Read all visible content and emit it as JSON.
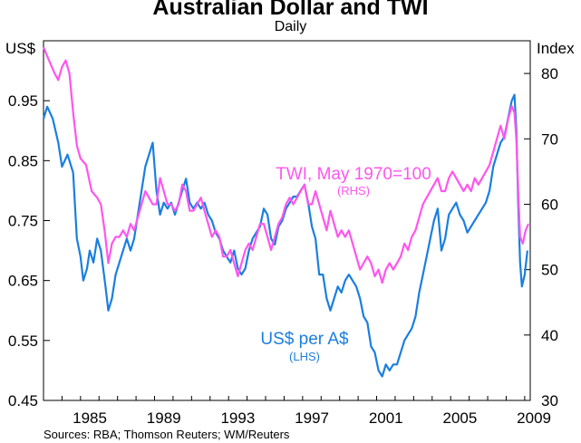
{
  "chart_data": {
    "type": "line",
    "title": "Australian Dollar and TWI",
    "subtitle": "Daily",
    "left_axis": {
      "label": "US$",
      "ylim": [
        0.45,
        1.05
      ],
      "ticks": [
        "0.45",
        "0.55",
        "0.65",
        "0.75",
        "0.85",
        "0.95"
      ],
      "tick_values": [
        0.45,
        0.55,
        0.65,
        0.75,
        0.85,
        0.95
      ]
    },
    "right_axis": {
      "label": "Index",
      "ylim": [
        30,
        85
      ],
      "ticks": [
        "30",
        "40",
        "50",
        "60",
        "70",
        "80"
      ],
      "tick_values": [
        30,
        40,
        50,
        60,
        70,
        80
      ]
    },
    "x_axis": {
      "range": [
        1983,
        2009.3
      ],
      "ticks": [
        "1985",
        "1989",
        "1993",
        "1997",
        "2001",
        "2005",
        "2009"
      ],
      "tick_values": [
        1985,
        1989,
        1993,
        1997,
        2001,
        2005,
        2009
      ]
    },
    "source": "Sources: RBA; Thomson Reuters; WM/Reuters",
    "series": [
      {
        "name": "US$ per A$",
        "sub": "(LHS)",
        "axis": "left",
        "color": "#1a7fe0",
        "points": [
          [
            1983.0,
            0.92
          ],
          [
            1983.2,
            0.94
          ],
          [
            1983.5,
            0.92
          ],
          [
            1983.8,
            0.88
          ],
          [
            1984.0,
            0.84
          ],
          [
            1984.3,
            0.86
          ],
          [
            1984.6,
            0.83
          ],
          [
            1984.8,
            0.72
          ],
          [
            1985.0,
            0.69
          ],
          [
            1985.15,
            0.65
          ],
          [
            1985.35,
            0.67
          ],
          [
            1985.5,
            0.7
          ],
          [
            1985.7,
            0.68
          ],
          [
            1985.9,
            0.72
          ],
          [
            1986.1,
            0.7
          ],
          [
            1986.35,
            0.64
          ],
          [
            1986.5,
            0.6
          ],
          [
            1986.7,
            0.62
          ],
          [
            1986.9,
            0.66
          ],
          [
            1987.1,
            0.68
          ],
          [
            1987.3,
            0.7
          ],
          [
            1987.5,
            0.72
          ],
          [
            1987.7,
            0.7
          ],
          [
            1987.9,
            0.72
          ],
          [
            1988.1,
            0.76
          ],
          [
            1988.3,
            0.8
          ],
          [
            1988.5,
            0.84
          ],
          [
            1988.7,
            0.86
          ],
          [
            1988.9,
            0.88
          ],
          [
            1989.1,
            0.8
          ],
          [
            1989.3,
            0.76
          ],
          [
            1989.5,
            0.78
          ],
          [
            1989.7,
            0.77
          ],
          [
            1989.9,
            0.78
          ],
          [
            1990.1,
            0.76
          ],
          [
            1990.3,
            0.78
          ],
          [
            1990.5,
            0.8
          ],
          [
            1990.7,
            0.82
          ],
          [
            1990.9,
            0.78
          ],
          [
            1991.1,
            0.77
          ],
          [
            1991.3,
            0.78
          ],
          [
            1991.5,
            0.77
          ],
          [
            1991.7,
            0.78
          ],
          [
            1991.9,
            0.76
          ],
          [
            1992.1,
            0.75
          ],
          [
            1992.3,
            0.73
          ],
          [
            1992.5,
            0.72
          ],
          [
            1992.7,
            0.7
          ],
          [
            1992.9,
            0.69
          ],
          [
            1993.1,
            0.68
          ],
          [
            1993.3,
            0.7
          ],
          [
            1993.5,
            0.67
          ],
          [
            1993.7,
            0.66
          ],
          [
            1993.9,
            0.67
          ],
          [
            1994.1,
            0.7
          ],
          [
            1994.3,
            0.72
          ],
          [
            1994.5,
            0.73
          ],
          [
            1994.7,
            0.74
          ],
          [
            1994.9,
            0.77
          ],
          [
            1995.1,
            0.76
          ],
          [
            1995.3,
            0.72
          ],
          [
            1995.5,
            0.71
          ],
          [
            1995.7,
            0.74
          ],
          [
            1995.9,
            0.75
          ],
          [
            1996.1,
            0.77
          ],
          [
            1996.3,
            0.78
          ],
          [
            1996.5,
            0.79
          ],
          [
            1996.7,
            0.79
          ],
          [
            1996.9,
            0.8
          ],
          [
            1997.1,
            0.81
          ],
          [
            1997.3,
            0.78
          ],
          [
            1997.5,
            0.74
          ],
          [
            1997.7,
            0.72
          ],
          [
            1997.9,
            0.66
          ],
          [
            1998.1,
            0.66
          ],
          [
            1998.3,
            0.62
          ],
          [
            1998.5,
            0.6
          ],
          [
            1998.7,
            0.62
          ],
          [
            1998.9,
            0.64
          ],
          [
            1999.1,
            0.63
          ],
          [
            1999.3,
            0.65
          ],
          [
            1999.5,
            0.66
          ],
          [
            1999.7,
            0.65
          ],
          [
            1999.9,
            0.64
          ],
          [
            2000.1,
            0.62
          ],
          [
            2000.3,
            0.59
          ],
          [
            2000.5,
            0.58
          ],
          [
            2000.7,
            0.54
          ],
          [
            2000.9,
            0.53
          ],
          [
            2001.1,
            0.5
          ],
          [
            2001.3,
            0.49
          ],
          [
            2001.5,
            0.51
          ],
          [
            2001.7,
            0.5
          ],
          [
            2001.9,
            0.51
          ],
          [
            2002.1,
            0.51
          ],
          [
            2002.3,
            0.53
          ],
          [
            2002.5,
            0.55
          ],
          [
            2002.7,
            0.56
          ],
          [
            2002.9,
            0.57
          ],
          [
            2003.1,
            0.59
          ],
          [
            2003.3,
            0.63
          ],
          [
            2003.5,
            0.66
          ],
          [
            2003.7,
            0.69
          ],
          [
            2003.9,
            0.72
          ],
          [
            2004.1,
            0.75
          ],
          [
            2004.3,
            0.77
          ],
          [
            2004.5,
            0.7
          ],
          [
            2004.7,
            0.72
          ],
          [
            2004.9,
            0.76
          ],
          [
            2005.1,
            0.77
          ],
          [
            2005.3,
            0.78
          ],
          [
            2005.5,
            0.76
          ],
          [
            2005.7,
            0.75
          ],
          [
            2005.9,
            0.73
          ],
          [
            2006.1,
            0.74
          ],
          [
            2006.3,
            0.75
          ],
          [
            2006.5,
            0.76
          ],
          [
            2006.7,
            0.77
          ],
          [
            2006.9,
            0.78
          ],
          [
            2007.1,
            0.8
          ],
          [
            2007.3,
            0.84
          ],
          [
            2007.5,
            0.86
          ],
          [
            2007.7,
            0.88
          ],
          [
            2007.9,
            0.89
          ],
          [
            2008.1,
            0.92
          ],
          [
            2008.3,
            0.95
          ],
          [
            2008.45,
            0.96
          ],
          [
            2008.55,
            0.9
          ],
          [
            2008.65,
            0.78
          ],
          [
            2008.75,
            0.68
          ],
          [
            2008.85,
            0.64
          ],
          [
            2009.0,
            0.66
          ],
          [
            2009.15,
            0.7
          ]
        ]
      },
      {
        "name": "TWI, May 1970=100",
        "sub": "(RHS)",
        "axis": "right",
        "color": "#ff55ee",
        "points": [
          [
            1983.0,
            84
          ],
          [
            1983.3,
            82
          ],
          [
            1983.6,
            80
          ],
          [
            1983.8,
            79
          ],
          [
            1984.0,
            81
          ],
          [
            1984.2,
            82
          ],
          [
            1984.4,
            80
          ],
          [
            1984.6,
            74
          ],
          [
            1984.8,
            69
          ],
          [
            1985.0,
            67
          ],
          [
            1985.3,
            66
          ],
          [
            1985.6,
            62
          ],
          [
            1985.9,
            61
          ],
          [
            1986.1,
            60
          ],
          [
            1986.3,
            56
          ],
          [
            1986.5,
            51
          ],
          [
            1986.7,
            54
          ],
          [
            1986.9,
            55
          ],
          [
            1987.1,
            55
          ],
          [
            1987.3,
            56
          ],
          [
            1987.5,
            55
          ],
          [
            1987.7,
            57
          ],
          [
            1987.9,
            56
          ],
          [
            1988.1,
            58
          ],
          [
            1988.3,
            60
          ],
          [
            1988.5,
            62
          ],
          [
            1988.7,
            61
          ],
          [
            1988.9,
            60
          ],
          [
            1989.1,
            60
          ],
          [
            1989.3,
            64
          ],
          [
            1989.5,
            62
          ],
          [
            1989.7,
            60
          ],
          [
            1989.9,
            60
          ],
          [
            1990.1,
            59
          ],
          [
            1990.3,
            60
          ],
          [
            1990.5,
            63
          ],
          [
            1990.7,
            62
          ],
          [
            1990.9,
            59
          ],
          [
            1991.1,
            59
          ],
          [
            1991.3,
            60
          ],
          [
            1991.5,
            61
          ],
          [
            1991.7,
            59
          ],
          [
            1991.9,
            57
          ],
          [
            1992.1,
            55
          ],
          [
            1992.3,
            56
          ],
          [
            1992.5,
            55
          ],
          [
            1992.7,
            52
          ],
          [
            1992.9,
            52
          ],
          [
            1993.1,
            53
          ],
          [
            1993.3,
            51
          ],
          [
            1993.5,
            49
          ],
          [
            1993.7,
            51
          ],
          [
            1993.9,
            53
          ],
          [
            1994.1,
            54
          ],
          [
            1994.3,
            53
          ],
          [
            1994.5,
            55
          ],
          [
            1994.7,
            57
          ],
          [
            1994.9,
            57
          ],
          [
            1995.1,
            55
          ],
          [
            1995.3,
            53
          ],
          [
            1995.5,
            55
          ],
          [
            1995.7,
            57
          ],
          [
            1995.9,
            58
          ],
          [
            1996.1,
            60
          ],
          [
            1996.3,
            61
          ],
          [
            1996.5,
            60
          ],
          [
            1996.7,
            61
          ],
          [
            1996.9,
            62
          ],
          [
            1997.1,
            63
          ],
          [
            1997.3,
            60
          ],
          [
            1997.5,
            60
          ],
          [
            1997.7,
            62
          ],
          [
            1997.9,
            60
          ],
          [
            1998.1,
            58
          ],
          [
            1998.3,
            56
          ],
          [
            1998.5,
            59
          ],
          [
            1998.7,
            57
          ],
          [
            1998.9,
            55
          ],
          [
            1999.1,
            56
          ],
          [
            1999.3,
            55
          ],
          [
            1999.5,
            56
          ],
          [
            1999.7,
            54
          ],
          [
            1999.9,
            52
          ],
          [
            2000.1,
            50
          ],
          [
            2000.3,
            51
          ],
          [
            2000.5,
            52
          ],
          [
            2000.7,
            51
          ],
          [
            2000.9,
            49
          ],
          [
            2001.1,
            50
          ],
          [
            2001.3,
            48
          ],
          [
            2001.5,
            50
          ],
          [
            2001.7,
            51
          ],
          [
            2001.9,
            50
          ],
          [
            2002.1,
            51
          ],
          [
            2002.3,
            52
          ],
          [
            2002.5,
            54
          ],
          [
            2002.7,
            53
          ],
          [
            2002.9,
            55
          ],
          [
            2003.1,
            56
          ],
          [
            2003.3,
            58
          ],
          [
            2003.5,
            60
          ],
          [
            2003.7,
            61
          ],
          [
            2003.9,
            62
          ],
          [
            2004.1,
            63
          ],
          [
            2004.3,
            64
          ],
          [
            2004.5,
            62
          ],
          [
            2004.7,
            62
          ],
          [
            2004.9,
            64
          ],
          [
            2005.1,
            65
          ],
          [
            2005.3,
            64
          ],
          [
            2005.5,
            63
          ],
          [
            2005.7,
            62
          ],
          [
            2005.9,
            63
          ],
          [
            2006.1,
            62
          ],
          [
            2006.3,
            64
          ],
          [
            2006.5,
            63
          ],
          [
            2006.7,
            64
          ],
          [
            2006.9,
            65
          ],
          [
            2007.1,
            66
          ],
          [
            2007.3,
            68
          ],
          [
            2007.5,
            70
          ],
          [
            2007.7,
            72
          ],
          [
            2007.9,
            70
          ],
          [
            2008.1,
            73
          ],
          [
            2008.3,
            75
          ],
          [
            2008.45,
            74
          ],
          [
            2008.55,
            70
          ],
          [
            2008.65,
            62
          ],
          [
            2008.75,
            55
          ],
          [
            2008.9,
            54
          ],
          [
            2009.05,
            56
          ],
          [
            2009.2,
            57
          ]
        ]
      }
    ]
  }
}
